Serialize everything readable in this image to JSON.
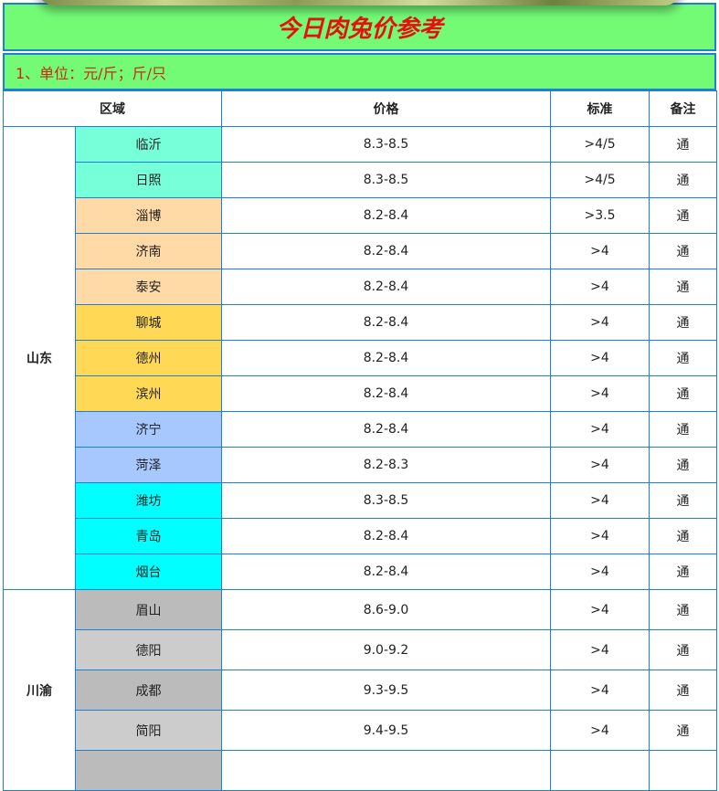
{
  "title": "今日肉兔价参考",
  "units": "1、单位：元/斤；斤/只",
  "headers": {
    "region": "区域",
    "price": "价格",
    "standard": "标准",
    "note": "备注"
  },
  "groups": [
    {
      "region": "山东",
      "rows": [
        {
          "city": "临沂",
          "price": "8.3-8.5",
          "standard": ">4/5",
          "note": "通",
          "color": "#77ffd9"
        },
        {
          "city": "日照",
          "price": "8.3-8.5",
          "standard": ">4/5",
          "note": "通",
          "color": "#77ffd9"
        },
        {
          "city": "淄博",
          "price": "8.2-8.4",
          "standard": ">3.5",
          "note": "通",
          "color": "#ffd9a6"
        },
        {
          "city": "济南",
          "price": "8.2-8.4",
          "standard": ">4",
          "note": "通",
          "color": "#ffd9a6"
        },
        {
          "city": "泰安",
          "price": "8.2-8.4",
          "standard": ">4",
          "note": "通",
          "color": "#ffd9a6"
        },
        {
          "city": "聊城",
          "price": "8.2-8.4",
          "standard": ">4",
          "note": "通",
          "color": "#ffd855"
        },
        {
          "city": "德州",
          "price": "8.2-8.4",
          "standard": ">4",
          "note": "通",
          "color": "#ffd855"
        },
        {
          "city": "滨州",
          "price": "8.2-8.4",
          "standard": ">4",
          "note": "通",
          "color": "#ffd855"
        },
        {
          "city": "济宁",
          "price": "8.2-8.4",
          "standard": ">4",
          "note": "通",
          "color": "#a6c8ff"
        },
        {
          "city": "菏泽",
          "price": "8.2-8.3",
          "standard": ">4",
          "note": "通",
          "color": "#a6c8ff"
        },
        {
          "city": "潍坊",
          "price": "8.3-8.5",
          "standard": ">4",
          "note": "通",
          "color": "#00ffff"
        },
        {
          "city": "青岛",
          "price": "8.2-8.4",
          "standard": ">4",
          "note": "通",
          "color": "#00ffff"
        },
        {
          "city": "烟台",
          "price": "8.2-8.4",
          "standard": ">4",
          "note": "通",
          "color": "#00ffff"
        }
      ]
    },
    {
      "region": "川渝",
      "rows": [
        {
          "city": "眉山",
          "price": "8.6-9.0",
          "standard": ">4",
          "note": "通",
          "color": "#bbbbbb"
        },
        {
          "city": "德阳",
          "price": "9.0-9.2",
          "standard": ">4",
          "note": "通",
          "color": "#cccccc"
        },
        {
          "city": "成都",
          "price": "9.3-9.5",
          "standard": ">4",
          "note": "通",
          "color": "#bbbbbb"
        },
        {
          "city": "简阳",
          "price": "9.4-9.5",
          "standard": ">4",
          "note": "通",
          "color": "#cccccc"
        },
        {
          "city": "",
          "price": "",
          "standard": "",
          "note": "",
          "color": "#bbbbbb"
        }
      ]
    }
  ]
}
